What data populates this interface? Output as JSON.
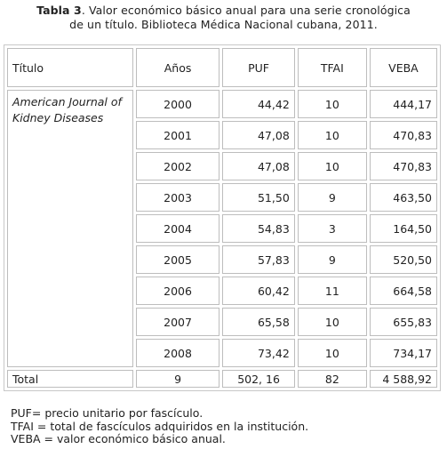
{
  "caption": {
    "label": "Tabla 3",
    "text_line1": ". Valor económico básico anual para una serie cronológica",
    "text_line2": "de un título.  Biblioteca Médica Nacional cubana, 2011."
  },
  "table": {
    "headers": {
      "titulo": "Título",
      "anos": "Años",
      "puf": "PUF",
      "tfai": "TFAI",
      "veba": "VEBA"
    },
    "journal": "American Journal of Kidney Diseases",
    "rows": [
      {
        "year": "2000",
        "puf": "44,42",
        "tfai": "10",
        "veba": "444,17"
      },
      {
        "year": "2001",
        "puf": "47,08",
        "tfai": "10",
        "veba": "470,83"
      },
      {
        "year": "2002",
        "puf": "47,08",
        "tfai": "10",
        "veba": "470,83"
      },
      {
        "year": "2003",
        "puf": "51,50",
        "tfai": "9",
        "veba": "463,50"
      },
      {
        "year": "2004",
        "puf": "54,83",
        "tfai": "3",
        "veba": "164,50"
      },
      {
        "year": "2005",
        "puf": "57,83",
        "tfai": "9",
        "veba": "520,50"
      },
      {
        "year": "2006",
        "puf": "60,42",
        "tfai": "11",
        "veba": "664,58"
      },
      {
        "year": "2007",
        "puf": "65,58",
        "tfai": "10",
        "veba": "655,83"
      },
      {
        "year": "2008",
        "puf": "73,42",
        "tfai": "10",
        "veba": "734,17"
      }
    ],
    "total": {
      "label": "Total",
      "years": "9",
      "puf": "502, 16",
      "tfai": "82",
      "veba": "4 588,92"
    }
  },
  "notes": [
    "PUF= precio unitario por fascículo.",
    "TFAI = total de fascículos adquiridos en la institución.",
    "VEBA = valor económico básico anual."
  ]
}
